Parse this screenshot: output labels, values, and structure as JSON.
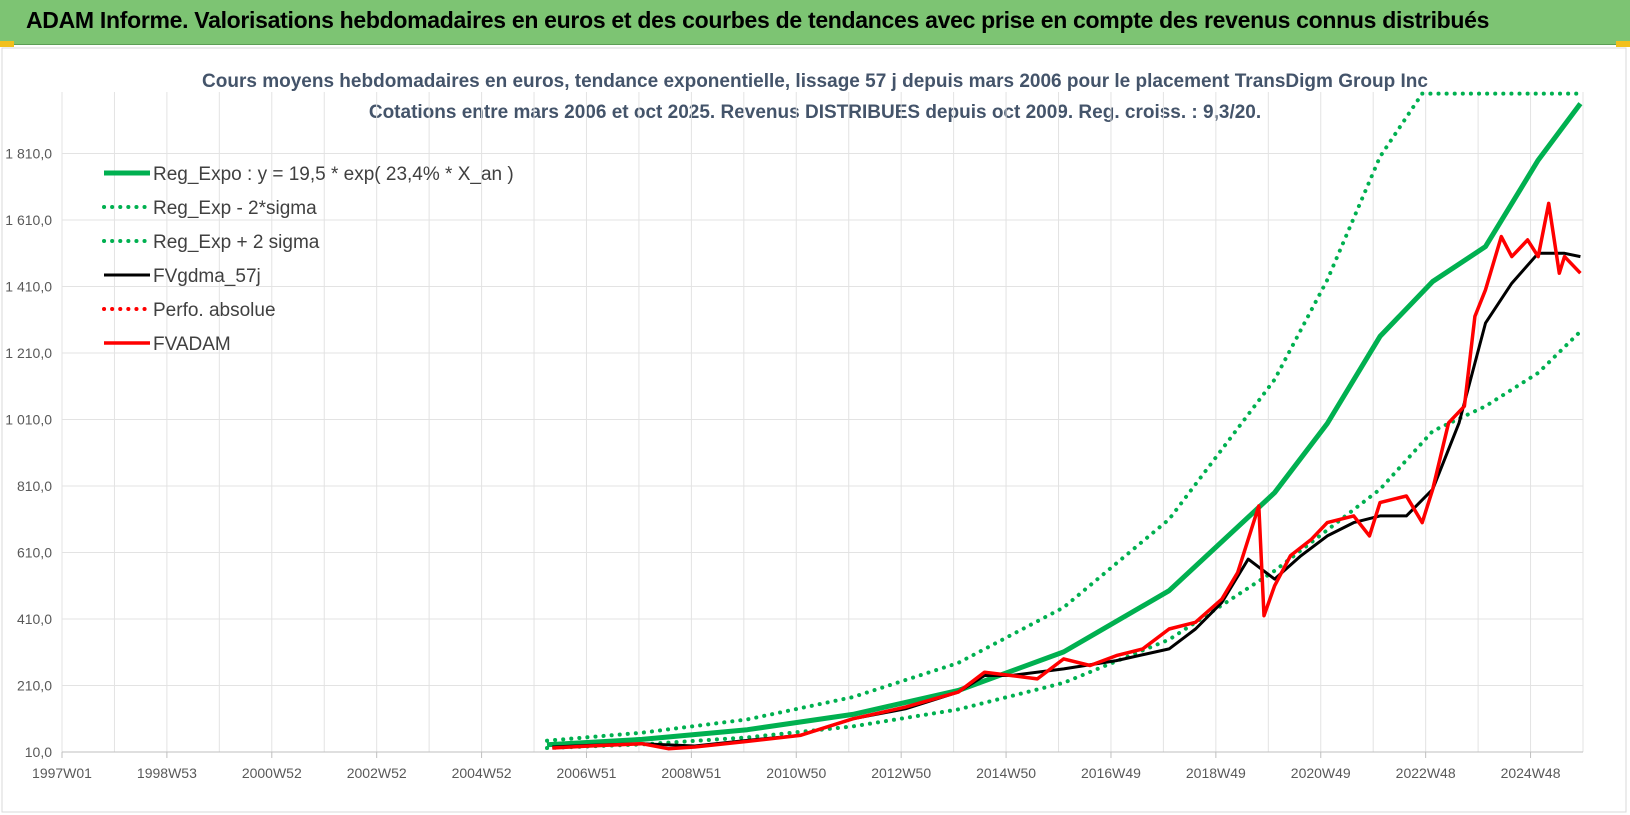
{
  "banner": {
    "title": "ADAM Informe. Valorisations hebdomadaires en euros et des courbes de tendances avec prise en compte des revenus connus distribués",
    "background": "#7dc473"
  },
  "chart_data": {
    "type": "line",
    "title": "Cours moyens hebdomadaires en euros, tendance exponentielle, lissage 57 j depuis mars 2006 pour le placement TransDigm Group Inc",
    "subtitle": "Cotations entre mars 2006 et oct 2025. Revenus DISTRIBUES depuis oct 2009. Reg. croiss. : 9,3/20.",
    "xlabel": "",
    "ylabel": "",
    "ylim": [
      10,
      1990
    ],
    "y_ticks": [
      "10,0",
      "210,0",
      "410,0",
      "610,0",
      "810,0",
      "1 010,0",
      "1 210,0",
      "1 410,0",
      "1 610,0",
      "1 810,0"
    ],
    "x_ticks": [
      "1997W01",
      "1998W53",
      "2000W52",
      "2002W52",
      "2004W52",
      "2006W51",
      "2008W51",
      "2010W50",
      "2012W50",
      "2014W50",
      "2016W49",
      "2018W49",
      "2020W49",
      "2022W48",
      "2024W48"
    ],
    "legend_position": "top-left",
    "grid": true,
    "series": [
      {
        "name": "Reg_Expo : y = 19,5 * exp( 23,4% *  X_an )",
        "color": "#00b050",
        "style": "solid",
        "x": [
          2006.2,
          2008,
          2010,
          2012,
          2014,
          2016,
          2018,
          2020,
          2021,
          2022,
          2023,
          2024,
          2025,
          2025.8
        ],
        "values": [
          32,
          48,
          77,
          123,
          195,
          311,
          495,
          790,
          998,
          1260,
          1425,
          1530,
          1790,
          1960
        ]
      },
      {
        "name": "Reg_Exp - 2*sigma",
        "color": "#00b050",
        "style": "dotted",
        "x": [
          2006.2,
          2008,
          2010,
          2012,
          2014,
          2016,
          2018,
          2020,
          2022,
          2023,
          2024,
          2025,
          2025.8
        ],
        "values": [
          22,
          33,
          54,
          87,
          138,
          218,
          348,
          555,
          800,
          975,
          1050,
          1150,
          1275
        ]
      },
      {
        "name": "Reg_Exp + 2 sigma",
        "color": "#00b050",
        "style": "dotted",
        "x": [
          2006.2,
          2008,
          2010,
          2012,
          2014,
          2016,
          2018,
          2020,
          2021,
          2022,
          2022.8,
          2023.2,
          2025.8
        ],
        "values": [
          44,
          68,
          108,
          175,
          278,
          445,
          710,
          1130,
          1430,
          1800,
          1990,
          1990,
          1990
        ]
      },
      {
        "name": "FVgdma_57j",
        "color": "#000000",
        "style": "solid",
        "x": [
          2006.3,
          2007,
          2008,
          2009,
          2010,
          2011,
          2012,
          2013,
          2014,
          2014.5,
          2015,
          2016,
          2017,
          2018,
          2018.5,
          2019,
          2019.5,
          2020,
          2020.5,
          2021,
          2021.5,
          2022,
          2022.5,
          2023,
          2023.5,
          2024,
          2024.5,
          2025,
          2025.5,
          2025.8
        ],
        "values": [
          25,
          30,
          35,
          28,
          45,
          60,
          110,
          140,
          190,
          240,
          240,
          260,
          285,
          320,
          380,
          460,
          590,
          530,
          600,
          660,
          700,
          720,
          720,
          800,
          1000,
          1300,
          1420,
          1510,
          1510,
          1500
        ]
      },
      {
        "name": "Perfo. absolue",
        "color": "#ff0000",
        "style": "dotted",
        "x": [],
        "values": []
      },
      {
        "name": "FVADAM",
        "color": "#ff0000",
        "style": "solid",
        "x": [
          2006.3,
          2007,
          2008,
          2008.5,
          2009,
          2010,
          2011,
          2012,
          2013,
          2014,
          2014.5,
          2015,
          2015.5,
          2016,
          2016.5,
          2017,
          2017.5,
          2018,
          2018.5,
          2019,
          2019.3,
          2019.7,
          2019.8,
          2020,
          2020.3,
          2020.7,
          2021,
          2021.5,
          2021.8,
          2022,
          2022.5,
          2022.8,
          2023,
          2023.3,
          2023.6,
          2023.8,
          2024,
          2024.3,
          2024.5,
          2024.8,
          2025,
          2025.2,
          2025.4,
          2025.5,
          2025.8
        ],
        "values": [
          22,
          28,
          35,
          20,
          25,
          42,
          60,
          110,
          145,
          190,
          250,
          240,
          230,
          290,
          270,
          300,
          320,
          380,
          400,
          470,
          550,
          750,
          420,
          510,
          600,
          650,
          700,
          720,
          660,
          760,
          780,
          700,
          800,
          1000,
          1050,
          1320,
          1400,
          1560,
          1500,
          1550,
          1500,
          1660,
          1450,
          1500,
          1450
        ]
      }
    ]
  }
}
